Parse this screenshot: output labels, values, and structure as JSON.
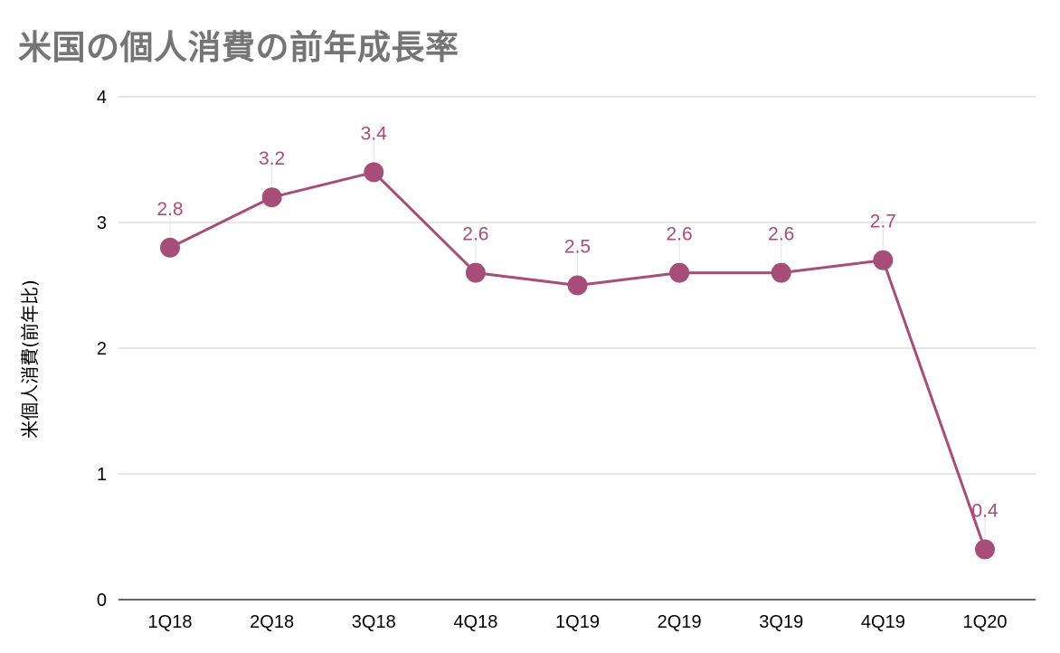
{
  "chart_data": {
    "type": "line",
    "title": "米国の個人消費の前年成長率",
    "xlabel": "",
    "ylabel": "米個人消費(前年比)",
    "categories": [
      "1Q18",
      "2Q18",
      "3Q18",
      "4Q18",
      "1Q19",
      "2Q19",
      "3Q19",
      "4Q19",
      "1Q20"
    ],
    "series": [
      {
        "values": [
          2.8,
          3.2,
          3.4,
          2.6,
          2.5,
          2.6,
          2.6,
          2.7,
          0.4
        ],
        "color": "#a64d79"
      }
    ],
    "data_labels": [
      "2.8",
      "3.2",
      "3.4",
      "2.6",
      "2.5",
      "2.6",
      "2.6",
      "2.7",
      "0.4"
    ],
    "ylim": [
      0,
      4
    ],
    "yticks": [
      "0",
      "1",
      "2",
      "3",
      "4"
    ],
    "grid": true,
    "legend": "none"
  }
}
